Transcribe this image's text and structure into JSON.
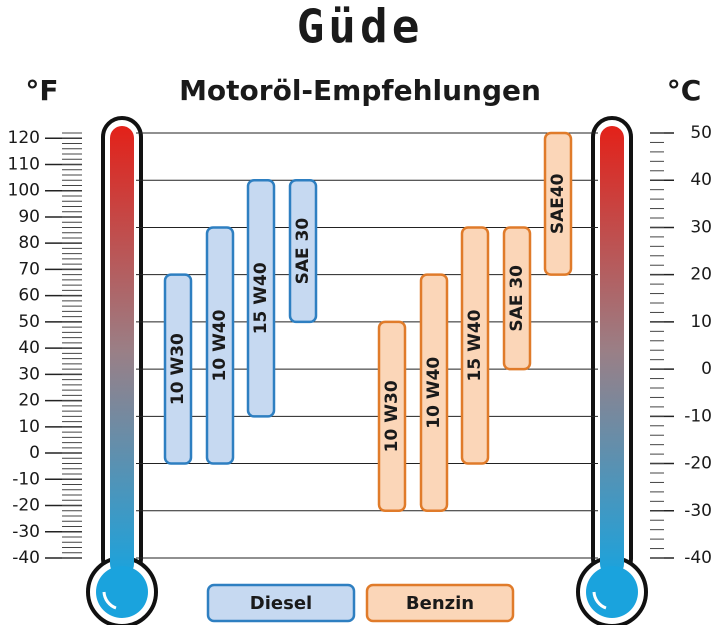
{
  "logo": "Güde",
  "chart_data": {
    "type": "range-bar",
    "title": "Motoröl-Empfehlungen",
    "y_label": "°C",
    "y2_label": "°F",
    "ylim": [
      -40,
      50
    ],
    "yticks": [
      -40,
      -30,
      -20,
      -10,
      0,
      10,
      20,
      30,
      40,
      50
    ],
    "y2lim": [
      -40,
      122
    ],
    "y2ticks": [
      -40,
      -30,
      -20,
      -10,
      0,
      10,
      20,
      30,
      40,
      50,
      60,
      70,
      80,
      90,
      100,
      110,
      120
    ],
    "grid": true,
    "series": [
      {
        "name": "Diesel",
        "color": "#2e7fc1",
        "fill": "#c6d9f1",
        "labels": [
          "10 W30",
          "10 W40",
          "15 W40",
          "SAE 30"
        ],
        "low": [
          -20,
          -20,
          -10,
          10
        ],
        "high": [
          20,
          30,
          40,
          40
        ]
      },
      {
        "name": "Benzin",
        "color": "#e07b2a",
        "fill": "#fbd6b8",
        "labels": [
          "10 W30",
          "10 W40",
          "15 W40",
          "SAE 30",
          "SAE40"
        ],
        "low": [
          -30,
          -30,
          -20,
          0,
          20
        ],
        "high": [
          10,
          20,
          30,
          30,
          50
        ]
      }
    ]
  }
}
